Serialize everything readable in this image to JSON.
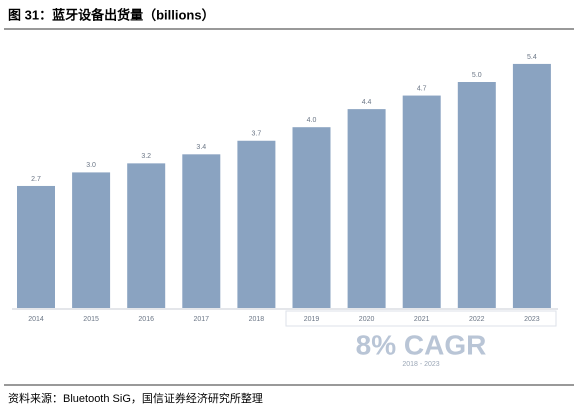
{
  "chart_data": {
    "type": "bar",
    "title": "图 31：蓝牙设备出货量（billions）",
    "categories": [
      "2014",
      "2015",
      "2016",
      "2017",
      "2018",
      "2019",
      "2020",
      "2021",
      "2022",
      "2023"
    ],
    "values": [
      2.7,
      3.0,
      3.2,
      3.4,
      3.7,
      4.0,
      4.4,
      4.7,
      5.0,
      5.4
    ],
    "value_labels": [
      "2.7",
      "3.0",
      "3.2",
      "3.4",
      "3.7",
      "4.0",
      "4.4",
      "4.7",
      "5.0",
      "5.4"
    ],
    "color": "#8aa3c1",
    "cagr_label": "8% CAGR",
    "cagr_period": "2018 - 2023",
    "source": "资料来源：Bluetooth SiG，国信证券经济研究所整理"
  }
}
